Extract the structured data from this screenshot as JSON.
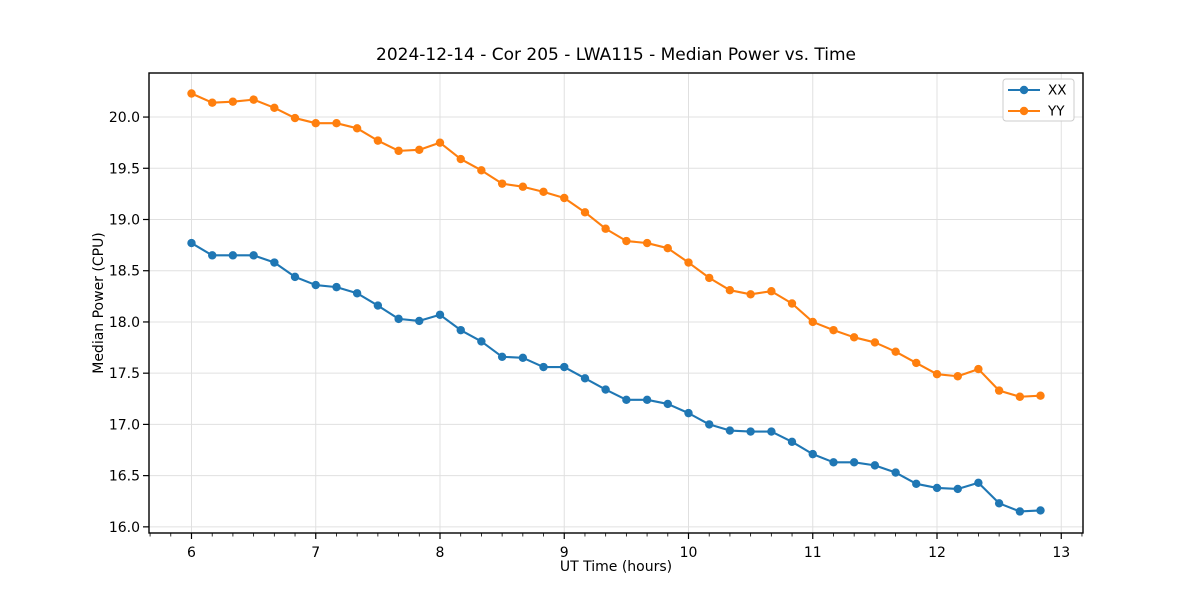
{
  "chart_data": {
    "type": "line",
    "title": "2024-12-14 - Cor 205 - LWA115 - Median Power vs. Time",
    "xlabel": "UT Time (hours)",
    "ylabel": "Median Power (CPU)",
    "xlim": [
      5.658,
      13.175
    ],
    "ylim": [
      15.94,
      20.43
    ],
    "xticks": [
      "6",
      "7",
      "8",
      "9",
      "10",
      "11",
      "12",
      "13"
    ],
    "yticks": [
      "16.0",
      "16.5",
      "17.0",
      "17.5",
      "18.0",
      "18.5",
      "19.0",
      "19.5",
      "20.0"
    ],
    "x_minor_step_hours": 0.1667,
    "grid": true,
    "legend_position": "upper right",
    "background_color": "#ffffff",
    "grid_color": "#e0e0e0",
    "x": [
      6.0,
      6.167,
      6.333,
      6.5,
      6.667,
      6.833,
      7.0,
      7.167,
      7.333,
      7.5,
      7.667,
      7.833,
      8.0,
      8.167,
      8.333,
      8.5,
      8.667,
      8.833,
      9.0,
      9.167,
      9.333,
      9.5,
      9.667,
      9.833,
      10.0,
      10.167,
      10.333,
      10.5,
      10.667,
      10.833,
      11.0,
      11.167,
      11.333,
      11.5,
      11.667,
      11.833,
      12.0,
      12.167,
      12.333,
      12.5,
      12.667,
      12.833
    ],
    "series": [
      {
        "name": "XX",
        "color": "#1f77b4",
        "values": [
          18.77,
          18.65,
          18.65,
          18.65,
          18.58,
          18.44,
          18.36,
          18.34,
          18.28,
          18.16,
          18.03,
          18.01,
          18.07,
          17.92,
          17.81,
          17.66,
          17.65,
          17.56,
          17.56,
          17.45,
          17.34,
          17.24,
          17.24,
          17.2,
          17.11,
          17.0,
          16.94,
          16.93,
          16.93,
          16.83,
          16.71,
          16.63,
          16.63,
          16.6,
          16.53,
          16.42,
          16.38,
          16.37,
          16.43,
          16.23,
          16.15,
          16.16
        ]
      },
      {
        "name": "YY",
        "color": "#ff7f0e",
        "values": [
          20.23,
          20.14,
          20.15,
          20.17,
          20.09,
          19.99,
          19.94,
          19.94,
          19.89,
          19.77,
          19.67,
          19.68,
          19.75,
          19.59,
          19.48,
          19.35,
          19.32,
          19.27,
          19.21,
          19.07,
          18.91,
          18.79,
          18.77,
          18.72,
          18.58,
          18.43,
          18.31,
          18.27,
          18.3,
          18.18,
          18.0,
          17.92,
          17.85,
          17.8,
          17.71,
          17.6,
          17.49,
          17.47,
          17.54,
          17.33,
          17.27,
          17.28
        ]
      }
    ]
  }
}
